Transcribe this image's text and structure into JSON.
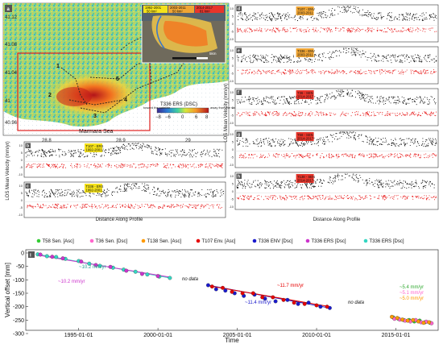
{
  "map": {
    "letter": "a",
    "lat_labels": [
      "41.12",
      "41.08",
      "41.04",
      "41",
      "40.96"
    ],
    "lon_labels": [
      "28.8",
      "28.9",
      "29"
    ],
    "sea_label": "Marmara Sea",
    "profile_labels": [
      "1",
      "2",
      "3",
      "4",
      "5"
    ],
    "colorbar_title": "T336 ERS (DSC)",
    "colorbar_ticks": [
      "−8",
      "−6",
      "0",
      "6",
      "8"
    ],
    "toward_label": "toward\nthe satellite",
    "away_label": "away from\nthe satellite",
    "inset": {
      "periods": [
        "1992-2001",
        "2003-2011",
        "2014-2017"
      ],
      "areas": [
        "50 km²",
        "50 km²",
        "81 km²"
      ],
      "scale": "5km"
    }
  },
  "profiles": {
    "y_label": "LOS Mean Velocity (mm/yr)",
    "x_label": "Distance Along Profile",
    "ticks": [
      "10",
      "5",
      "0",
      "-5",
      "-10"
    ],
    "left": [
      {
        "letter": "b",
        "tag": "T107 - ERS",
        "years": "1992-2001",
        "tag_color": "#f5e21a"
      },
      {
        "letter": "c",
        "tag": "T336 - ERS",
        "years": "1992-2001",
        "tag_color": "#f5e21a"
      }
    ],
    "right": [
      {
        "letter": "d",
        "tag": "T107 - ENV",
        "years": "2003-2011",
        "tag_color": "#f0a534"
      },
      {
        "letter": "e",
        "tag": "T336 - ENV",
        "years": "2003-2011",
        "tag_color": "#f0a534"
      },
      {
        "letter": "f",
        "tag": "T36 - SEN",
        "years": "2014-2017",
        "tag_color": "#e8352b"
      },
      {
        "letter": "g",
        "tag": "T58 - SEN",
        "years": "2014-2017",
        "tag_color": "#e8352b"
      },
      {
        "letter": "h",
        "tag": "T138 - SEN",
        "years": "2014-2017",
        "tag_color": "#e8352b"
      }
    ]
  },
  "legend": [
    {
      "label": "T58 Sen. [Asc]",
      "color": "#33cc33"
    },
    {
      "label": "T36 Sen. [Dsc]",
      "color": "#ff66cc"
    },
    {
      "label": "T138 Sen. [Asc]",
      "color": "#ff9900"
    },
    {
      "label": "T107 Env. [Asc]",
      "color": "#e60000"
    },
    {
      "label": "T336 ENV [Dsc]",
      "color": "#1a1acc"
    },
    {
      "label": "T336 ERS [Dsc]",
      "color": "#cc33cc"
    },
    {
      "label": "T336 ERS [Dsc]",
      "color": "#33d6c2"
    }
  ],
  "chart_data": {
    "type": "scatter",
    "panel_letter": "i",
    "ylabel": "Vertical offset [mm]",
    "xlabel": "Time",
    "x_ticks": [
      "1995-01-01",
      "2000-01-01",
      "2005-01-01",
      "2010-01-01",
      "2015-01-01"
    ],
    "xlim": [
      "1991-09-01",
      "2017-09-01"
    ],
    "ylim": [
      -300,
      0
    ],
    "y_ticks": [
      0,
      -50,
      -100,
      -150,
      -200,
      -250,
      -300
    ],
    "annotations": {
      "ers_rate_1": "~10.2 mm/yr",
      "ers_rate_2": "~10.2 mm/yr",
      "gap_1": "no data",
      "env_rate_1": "~11.7 mm/yr",
      "env_rate_2": "~11.4 mm/yr",
      "gap_2": "no data",
      "sen_rate_1": "~5.4 mm/yr",
      "sen_rate_2": "~5.1 mm/yr",
      "sen_rate_3": "~5.0 mm/yr"
    },
    "series": [
      {
        "name": "T336 ERS [Dsc]",
        "color": "#33d6c2",
        "x": [
          "1992-06-01",
          "1993-01-01",
          "1993-08-01",
          "1994-03-01",
          "1995-01-01",
          "1995-09-01",
          "1996-05-01",
          "1997-03-01",
          "1997-11-01",
          "1998-08-01",
          "1999-05-01",
          "2000-02-01",
          "2000-10-01"
        ],
        "y": [
          -5,
          -12,
          -15,
          -22,
          -30,
          -40,
          -48,
          -55,
          -62,
          -70,
          -80,
          -88,
          -93
        ]
      },
      {
        "name": "T336 ERS [Dsc] ",
        "color": "#cc33cc",
        "x": [
          "1992-08-01",
          "1993-05-01",
          "1994-01-01",
          "1995-03-01",
          "1996-02-01",
          "1997-01-01",
          "1998-01-01",
          "1999-01-01",
          "2000-01-01"
        ],
        "y": [
          -6,
          -14,
          -20,
          -32,
          -45,
          -52,
          -66,
          -78,
          -86
        ]
      },
      {
        "name": "T336 ENV [Dsc]",
        "color": "#1a1acc",
        "x": [
          "2003-03-01",
          "2003-09-01",
          "2004-04-01",
          "2004-11-01",
          "2005-06-01",
          "2006-02-01",
          "2006-10-01",
          "2007-06-01",
          "2008-03-01",
          "2008-11-01",
          "2009-07-01",
          "2010-04-01",
          "2010-11-01"
        ],
        "y": [
          -120,
          -135,
          -140,
          -150,
          -160,
          -155,
          -170,
          -180,
          -175,
          -190,
          -185,
          -200,
          -205
        ]
      },
      {
        "name": "T107 Env. [Asc]",
        "color": "#e60000",
        "x": [
          "2003-06-01",
          "2004-02-01",
          "2004-09-01",
          "2005-05-01",
          "2006-01-01",
          "2006-08-01",
          "2007-04-01",
          "2007-12-01",
          "2008-08-01",
          "2009-04-01",
          "2010-01-01",
          "2010-09-01"
        ],
        "y": [
          -125,
          -130,
          -145,
          -150,
          -150,
          -165,
          -165,
          -175,
          -185,
          -190,
          -195,
          -200
        ]
      },
      {
        "name": "T58 Sen. [Asc]",
        "color": "#33cc33",
        "x": [
          "2014-11-01",
          "2015-03-01",
          "2015-07-01",
          "2015-11-01",
          "2016-03-01",
          "2016-07-01",
          "2016-11-01",
          "2017-03-01"
        ],
        "y": [
          -240,
          -245,
          -250,
          -250,
          -255,
          -252,
          -258,
          -260
        ]
      },
      {
        "name": "T36 Sen. [Dsc]",
        "color": "#ff66cc",
        "x": [
          "2014-12-01",
          "2015-04-01",
          "2015-08-01",
          "2015-12-01",
          "2016-04-01",
          "2016-08-01",
          "2016-12-01",
          "2017-04-01"
        ],
        "y": [
          -245,
          -248,
          -252,
          -255,
          -250,
          -258,
          -256,
          -262
        ]
      },
      {
        "name": "T138 Sen. [Asc]",
        "color": "#ff9900",
        "x": [
          "2014-10-01",
          "2015-02-01",
          "2015-06-01",
          "2015-10-01",
          "2016-02-01",
          "2016-06-01",
          "2016-10-01",
          "2017-02-01"
        ],
        "y": [
          -238,
          -242,
          -248,
          -252,
          -250,
          -255,
          -260,
          -258
        ]
      }
    ],
    "trend_lines": [
      {
        "color": "#33d6c2",
        "x": [
          "1992-06-01",
          "2000-10-01"
        ],
        "y": [
          -5,
          -93
        ]
      },
      {
        "color": "#cc33cc",
        "x": [
          "1992-06-01",
          "2000-10-01"
        ],
        "y": [
          -8,
          -90
        ]
      },
      {
        "color": "#1a1acc",
        "x": [
          "2003-03-01",
          "2010-11-01"
        ],
        "y": [
          -120,
          -205
        ]
      },
      {
        "color": "#e60000",
        "x": [
          "2003-03-01",
          "2010-11-01"
        ],
        "y": [
          -122,
          -200
        ]
      }
    ]
  }
}
